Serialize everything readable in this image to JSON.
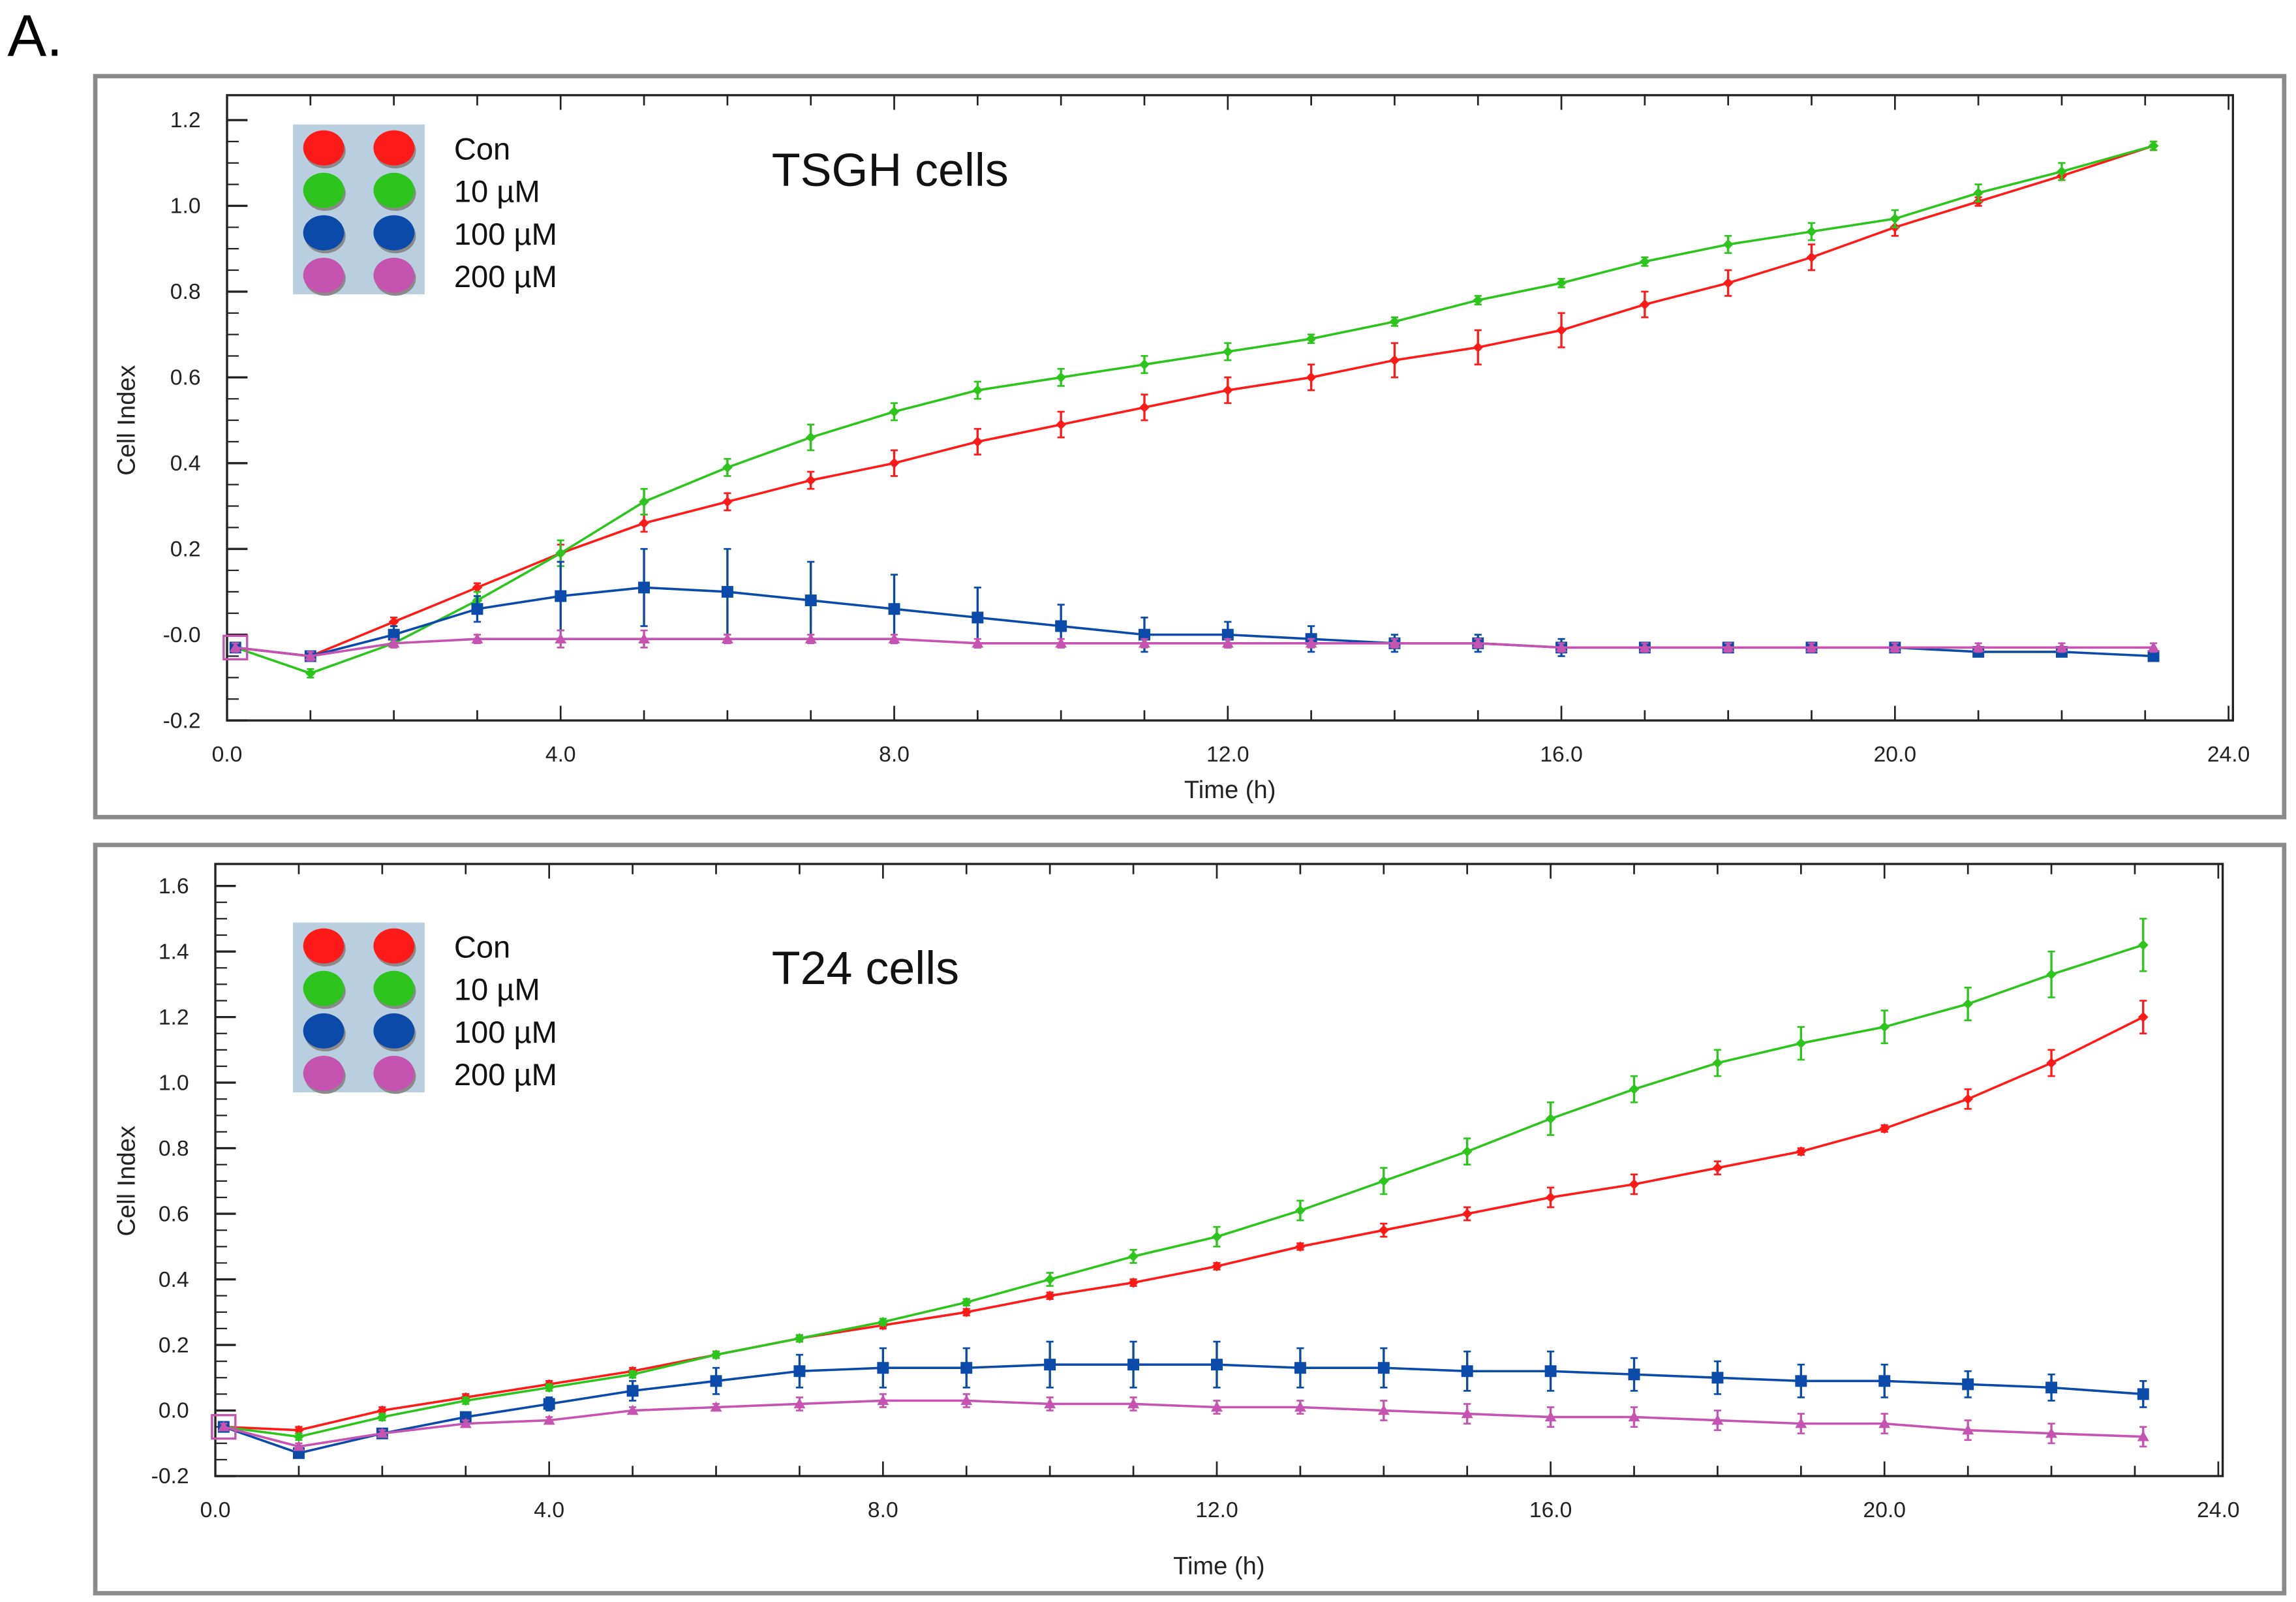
{
  "panel_label": "A.",
  "colors": {
    "Con": "#ff1a1a",
    "10 µM": "#2ec41e",
    "100 µM": "#0b4aa8",
    "200 µM": "#c454b0"
  },
  "chart_data": [
    {
      "type": "line",
      "title": "TSGH cells",
      "xlabel": "Time (h)",
      "ylabel": "Cell Index",
      "xlim": [
        0,
        24
      ],
      "ylim": [
        -0.2,
        1.2
      ],
      "xticks": [
        "0.0",
        "4.0",
        "8.0",
        "12.0",
        "16.0",
        "20.0",
        "24.0"
      ],
      "yticks": [
        "-0.2",
        "-0.0",
        "0.2",
        "0.4",
        "0.6",
        "0.8",
        "1.0",
        "1.2"
      ],
      "legend": [
        "Con",
        "10 µM",
        "100 µM",
        "200 µM"
      ],
      "legend_position": "top-left",
      "x": [
        0.1,
        1,
        2,
        3,
        4,
        5,
        6,
        7,
        8,
        9,
        10,
        11,
        12,
        13,
        14,
        15,
        16,
        17,
        18,
        19,
        20,
        21,
        22,
        23.1
      ],
      "series": [
        {
          "name": "Con",
          "marker": "diamond",
          "values": [
            -0.03,
            -0.05,
            0.03,
            0.11,
            0.19,
            0.26,
            0.31,
            0.36,
            0.4,
            0.45,
            0.49,
            0.53,
            0.57,
            0.6,
            0.64,
            0.67,
            0.71,
            0.77,
            0.82,
            0.88,
            0.95,
            1.01,
            1.07,
            1.14
          ],
          "err": [
            0.01,
            0.01,
            0.01,
            0.01,
            0.02,
            0.02,
            0.02,
            0.02,
            0.03,
            0.03,
            0.03,
            0.03,
            0.03,
            0.03,
            0.04,
            0.04,
            0.04,
            0.03,
            0.03,
            0.03,
            0.02,
            0.01,
            0.01,
            0.01
          ]
        },
        {
          "name": "10 µM",
          "marker": "diamond",
          "values": [
            -0.03,
            -0.09,
            -0.02,
            0.08,
            0.19,
            0.31,
            0.39,
            0.46,
            0.52,
            0.57,
            0.6,
            0.63,
            0.66,
            0.69,
            0.73,
            0.78,
            0.82,
            0.87,
            0.91,
            0.94,
            0.97,
            1.03,
            1.08,
            1.14
          ],
          "err": [
            0.01,
            0.01,
            0.01,
            0.02,
            0.03,
            0.03,
            0.02,
            0.03,
            0.02,
            0.02,
            0.02,
            0.02,
            0.02,
            0.01,
            0.01,
            0.01,
            0.01,
            0.01,
            0.02,
            0.02,
            0.02,
            0.02,
            0.02,
            0.01
          ]
        },
        {
          "name": "100 µM",
          "marker": "square",
          "values": [
            -0.03,
            -0.05,
            0.0,
            0.06,
            0.09,
            0.11,
            0.1,
            0.08,
            0.06,
            0.04,
            0.02,
            0.0,
            0.0,
            -0.01,
            -0.02,
            -0.02,
            -0.03,
            -0.03,
            -0.03,
            -0.03,
            -0.03,
            -0.04,
            -0.04,
            -0.05
          ],
          "err": [
            0.01,
            0.01,
            0.02,
            0.03,
            0.08,
            0.09,
            0.1,
            0.09,
            0.08,
            0.07,
            0.05,
            0.04,
            0.03,
            0.03,
            0.02,
            0.02,
            0.02,
            0.01,
            0.01,
            0.01,
            0.01,
            0.01,
            0.01,
            0.01
          ]
        },
        {
          "name": "200 µM",
          "marker": "triangle",
          "values": [
            -0.03,
            -0.05,
            -0.02,
            -0.01,
            -0.01,
            -0.01,
            -0.01,
            -0.01,
            -0.01,
            -0.02,
            -0.02,
            -0.02,
            -0.02,
            -0.02,
            -0.02,
            -0.02,
            -0.03,
            -0.03,
            -0.03,
            -0.03,
            -0.03,
            -0.03,
            -0.03,
            -0.03
          ],
          "err": [
            0.01,
            0.01,
            0.01,
            0.01,
            0.02,
            0.02,
            0.01,
            0.01,
            0.01,
            0.01,
            0.01,
            0.01,
            0.01,
            0.01,
            0.01,
            0.01,
            0.01,
            0.01,
            0.01,
            0.01,
            0.01,
            0.01,
            0.01,
            0.01
          ]
        }
      ]
    },
    {
      "type": "line",
      "title": "T24 cells",
      "xlabel": "Time (h)",
      "ylabel": "Cell Index",
      "xlim": [
        0,
        24
      ],
      "ylim": [
        -0.2,
        1.6
      ],
      "xticks": [
        "0.0",
        "4.0",
        "8.0",
        "12.0",
        "16.0",
        "20.0",
        "24.0"
      ],
      "yticks": [
        "-0.2",
        "0.0",
        "0.2",
        "0.4",
        "0.6",
        "0.8",
        "1.0",
        "1.2",
        "1.4",
        "1.6"
      ],
      "legend": [
        "Con",
        "10 µM",
        "100 µM",
        "200 µM"
      ],
      "legend_position": "top-left",
      "x": [
        0.1,
        1,
        2,
        3,
        4,
        5,
        6,
        7,
        8,
        9,
        10,
        11,
        12,
        13,
        14,
        15,
        16,
        17,
        18,
        19,
        20,
        21,
        22,
        23.1
      ],
      "series": [
        {
          "name": "Con",
          "marker": "diamond",
          "values": [
            -0.05,
            -0.06,
            0.0,
            0.04,
            0.08,
            0.12,
            0.17,
            0.22,
            0.26,
            0.3,
            0.35,
            0.39,
            0.44,
            0.5,
            0.55,
            0.6,
            0.65,
            0.69,
            0.74,
            0.79,
            0.86,
            0.95,
            1.06,
            1.2
          ],
          "err": [
            0.01,
            0.01,
            0.01,
            0.01,
            0.01,
            0.01,
            0.01,
            0.01,
            0.01,
            0.01,
            0.01,
            0.01,
            0.01,
            0.01,
            0.02,
            0.02,
            0.03,
            0.03,
            0.02,
            0.01,
            0.01,
            0.03,
            0.04,
            0.05
          ]
        },
        {
          "name": "10 µM",
          "marker": "diamond",
          "values": [
            -0.05,
            -0.08,
            -0.02,
            0.03,
            0.07,
            0.11,
            0.17,
            0.22,
            0.27,
            0.33,
            0.4,
            0.47,
            0.53,
            0.61,
            0.7,
            0.79,
            0.89,
            0.98,
            1.06,
            1.12,
            1.17,
            1.24,
            1.33,
            1.42
          ],
          "err": [
            0.01,
            0.01,
            0.01,
            0.01,
            0.01,
            0.01,
            0.01,
            0.01,
            0.01,
            0.01,
            0.02,
            0.02,
            0.03,
            0.03,
            0.04,
            0.04,
            0.05,
            0.04,
            0.04,
            0.05,
            0.05,
            0.05,
            0.07,
            0.08
          ]
        },
        {
          "name": "100 µM",
          "marker": "square",
          "values": [
            -0.05,
            -0.13,
            -0.07,
            -0.02,
            0.02,
            0.06,
            0.09,
            0.12,
            0.13,
            0.13,
            0.14,
            0.14,
            0.14,
            0.13,
            0.13,
            0.12,
            0.12,
            0.11,
            0.1,
            0.09,
            0.09,
            0.08,
            0.07,
            0.05
          ],
          "err": [
            0.01,
            0.01,
            0.01,
            0.01,
            0.02,
            0.03,
            0.04,
            0.05,
            0.06,
            0.06,
            0.07,
            0.07,
            0.07,
            0.06,
            0.06,
            0.06,
            0.06,
            0.05,
            0.05,
            0.05,
            0.05,
            0.04,
            0.04,
            0.04
          ]
        },
        {
          "name": "200 µM",
          "marker": "triangle",
          "values": [
            -0.05,
            -0.11,
            -0.07,
            -0.04,
            -0.03,
            0.0,
            0.01,
            0.02,
            0.03,
            0.03,
            0.02,
            0.02,
            0.01,
            0.01,
            0.0,
            -0.01,
            -0.02,
            -0.02,
            -0.03,
            -0.04,
            -0.04,
            -0.06,
            -0.07,
            -0.08
          ],
          "err": [
            0.01,
            0.01,
            0.01,
            0.01,
            0.01,
            0.01,
            0.01,
            0.02,
            0.02,
            0.02,
            0.02,
            0.02,
            0.02,
            0.02,
            0.03,
            0.03,
            0.03,
            0.03,
            0.03,
            0.03,
            0.03,
            0.03,
            0.03,
            0.03
          ]
        }
      ]
    }
  ]
}
